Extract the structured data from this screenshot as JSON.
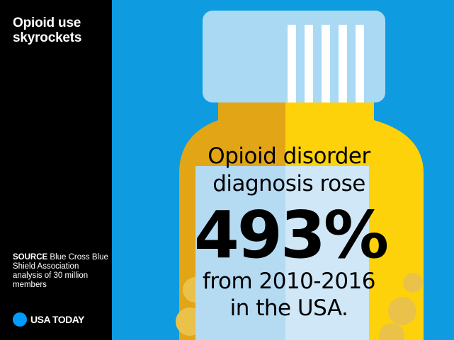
{
  "sidebar": {
    "title": "Opioid use skyrockets",
    "source_label": "SOURCE",
    "source_text": "Blue Cross Blue Shield Association analysis of 30 million members"
  },
  "brand": {
    "name": "USA TODAY",
    "dot_icon": "usa-today-circle-logo",
    "dot_color": "#009bff"
  },
  "headline": {
    "line1": "Opioid disorder",
    "line2": "diagnosis rose",
    "stat": "493%",
    "line3": "from 2010-2016",
    "line4": "in the USA."
  },
  "colors": {
    "background": "#0e9be0",
    "cap": "#aad9f3",
    "bottle_dark": "#e2a516",
    "bottle_light": "#fdd20a",
    "label_panel": "#b5dbf3"
  }
}
